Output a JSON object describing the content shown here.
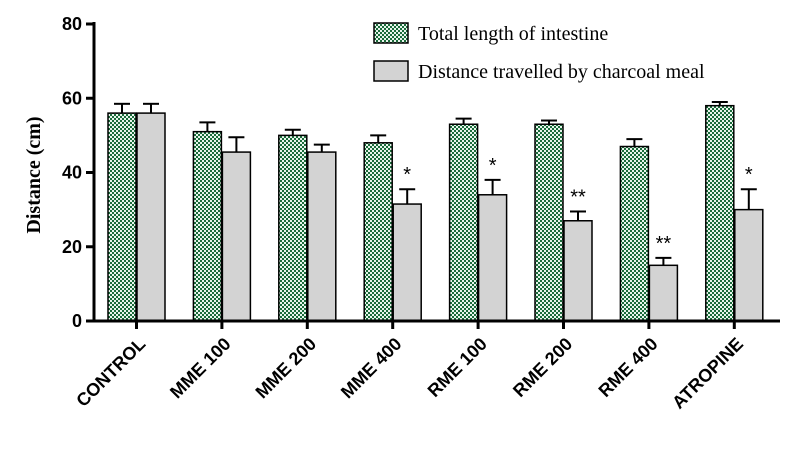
{
  "chart_data": {
    "type": "bar",
    "title": "",
    "xlabel": "",
    "ylabel": "Distance (cm)",
    "ylim": [
      0,
      80
    ],
    "yticks": [
      "0",
      "20",
      "40",
      "60",
      "80"
    ],
    "grid": false,
    "legend_position": "top-right",
    "categories": [
      "CONTROL",
      "MME 100",
      "MME 200",
      "MME 400",
      "RME 100",
      "RME 200",
      "RME 400",
      "ATROPINE"
    ],
    "series": [
      {
        "name": "Total length of intestine",
        "values": [
          56,
          51,
          50,
          48,
          53,
          53,
          47,
          58
        ],
        "errors": [
          2.5,
          2.5,
          1.5,
          2,
          1.5,
          1,
          2,
          1
        ],
        "color": "#1a6b3a",
        "fill_style": "checkered"
      },
      {
        "name": "Distance travelled by charcoal meal",
        "values": [
          56,
          45.5,
          45.5,
          31.5,
          34,
          27,
          15,
          30
        ],
        "errors": [
          2.5,
          4,
          2,
          4,
          4,
          2.5,
          2,
          5.5
        ],
        "color": "#d3d3d3",
        "fill_style": "solid",
        "significance": [
          "",
          "",
          "",
          "*",
          "*",
          "**",
          "**",
          "*"
        ]
      }
    ]
  }
}
